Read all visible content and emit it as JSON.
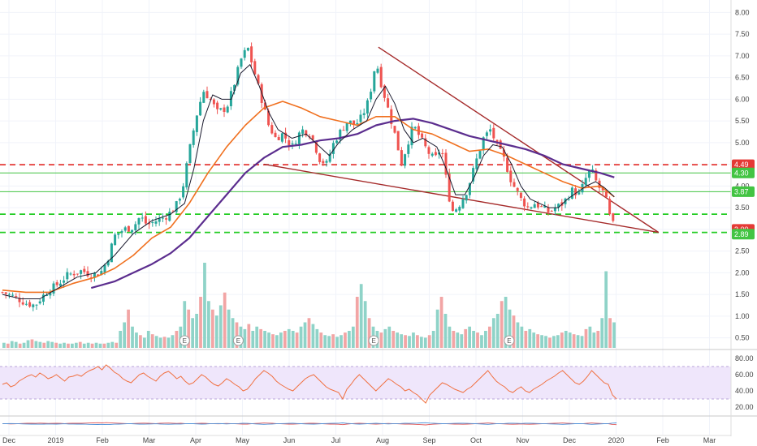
{
  "chart_data": {
    "type": "candlestick",
    "price_axis": {
      "ticks": [
        "8.00",
        "7.50",
        "7.00",
        "6.50",
        "6.00",
        "5.50",
        "5.00",
        "4.50",
        "4.00",
        "3.50",
        "3.00",
        "2.50",
        "2.00",
        "1.50",
        "1.00",
        "0.50"
      ],
      "range": [
        0.25,
        8.1
      ]
    },
    "rsi_axis": {
      "ticks": [
        "80.00",
        "60.00",
        "40.00",
        "20.00"
      ],
      "range": [
        10,
        90
      ],
      "band": [
        30,
        70
      ]
    },
    "x_axis": {
      "ticks": [
        "Dec",
        "2019",
        "Feb",
        "Mar",
        "Apr",
        "May",
        "Jun",
        "Jul",
        "Aug",
        "Sep",
        "Oct",
        "Nov",
        "Dec",
        "2020",
        "Feb",
        "Mar"
      ]
    },
    "price_tags": [
      {
        "label": "4.49",
        "value": 4.49,
        "color": "#e53935"
      },
      {
        "label": "4.30",
        "value": 4.3,
        "color": "#43c443"
      },
      {
        "label": "3.87",
        "value": 3.87,
        "color": "#43c443"
      },
      {
        "label": "3.00",
        "value": 3.0,
        "color": "#e53935"
      },
      {
        "label": "2.89",
        "value": 2.89,
        "color": "#43c443"
      }
    ],
    "horizontal_levels": [
      {
        "value": 4.49,
        "color": "#e53935",
        "style": "dashed"
      },
      {
        "value": 4.3,
        "color": "#43c443",
        "style": "solid"
      },
      {
        "value": 3.87,
        "color": "#43c443",
        "style": "solid"
      },
      {
        "value": 3.35,
        "color": "#22cc22",
        "style": "dashed"
      },
      {
        "value": 2.93,
        "color": "#22cc22",
        "style": "dashed"
      }
    ],
    "trend_lines": [
      {
        "from": [
          8.05,
          7.2
        ],
        "to": [
          14.05,
          2.93
        ],
        "color": "#a52a2a"
      },
      {
        "from": [
          5.6,
          4.5
        ],
        "to": [
          14.05,
          2.93
        ],
        "color": "#a52a2a"
      }
    ],
    "earnings_markers": [
      3.9,
      5.05,
      7.95,
      10.85
    ],
    "price_series": [
      [
        0.0,
        1.55
      ],
      [
        0.25,
        1.45
      ],
      [
        0.5,
        1.3
      ],
      [
        0.7,
        1.25
      ],
      [
        0.85,
        1.45
      ],
      [
        1.0,
        1.6
      ],
      [
        1.2,
        1.75
      ],
      [
        1.4,
        1.95
      ],
      [
        1.7,
        2.05
      ],
      [
        1.9,
        1.95
      ],
      [
        2.1,
        2.0
      ],
      [
        2.25,
        2.3
      ],
      [
        2.4,
        2.85
      ],
      [
        2.6,
        3.0
      ],
      [
        2.8,
        3.05
      ],
      [
        2.95,
        3.3
      ],
      [
        3.1,
        3.1
      ],
      [
        3.3,
        3.2
      ],
      [
        3.5,
        3.3
      ],
      [
        3.7,
        3.5
      ],
      [
        3.85,
        3.9
      ],
      [
        4.0,
        4.8
      ],
      [
        4.15,
        5.6
      ],
      [
        4.3,
        6.2
      ],
      [
        4.45,
        6.0
      ],
      [
        4.6,
        5.7
      ],
      [
        4.8,
        5.8
      ],
      [
        4.95,
        6.3
      ],
      [
        5.1,
        6.9
      ],
      [
        5.25,
        7.2
      ],
      [
        5.4,
        6.6
      ],
      [
        5.55,
        6.0
      ],
      [
        5.7,
        5.4
      ],
      [
        5.85,
        5.1
      ],
      [
        6.0,
        5.2
      ],
      [
        6.2,
        4.9
      ],
      [
        6.4,
        5.3
      ],
      [
        6.6,
        5.2
      ],
      [
        6.8,
        4.6
      ],
      [
        6.95,
        4.5
      ],
      [
        7.05,
        4.9
      ],
      [
        7.2,
        5.2
      ],
      [
        7.4,
        5.5
      ],
      [
        7.55,
        5.4
      ],
      [
        7.7,
        5.6
      ],
      [
        7.85,
        6.0
      ],
      [
        8.0,
        6.9
      ],
      [
        8.1,
        6.4
      ],
      [
        8.25,
        5.8
      ],
      [
        8.4,
        5.2
      ],
      [
        8.55,
        4.5
      ],
      [
        8.65,
        4.9
      ],
      [
        8.8,
        5.4
      ],
      [
        8.95,
        5.1
      ],
      [
        9.1,
        4.8
      ],
      [
        9.25,
        4.6
      ],
      [
        9.4,
        4.9
      ],
      [
        9.55,
        3.8
      ],
      [
        9.65,
        3.4
      ],
      [
        9.8,
        3.6
      ],
      [
        9.95,
        3.9
      ],
      [
        10.15,
        4.6
      ],
      [
        10.3,
        5.1
      ],
      [
        10.45,
        5.3
      ],
      [
        10.6,
        4.9
      ],
      [
        10.75,
        4.6
      ],
      [
        10.9,
        4.1
      ],
      [
        11.1,
        3.7
      ],
      [
        11.25,
        3.5
      ],
      [
        11.4,
        3.6
      ],
      [
        11.55,
        3.5
      ],
      [
        11.7,
        3.4
      ],
      [
        11.85,
        3.5
      ],
      [
        12.0,
        3.6
      ],
      [
        12.2,
        3.9
      ],
      [
        12.35,
        3.8
      ],
      [
        12.5,
        4.2
      ],
      [
        12.6,
        4.4
      ],
      [
        12.75,
        4.0
      ],
      [
        12.9,
        3.8
      ],
      [
        13.0,
        3.3
      ],
      [
        13.1,
        3.05
      ]
    ],
    "ma_short": [
      [
        0.0,
        1.5
      ],
      [
        0.4,
        1.4
      ],
      [
        0.8,
        1.4
      ],
      [
        1.2,
        1.65
      ],
      [
        1.6,
        1.9
      ],
      [
        2.0,
        2.0
      ],
      [
        2.4,
        2.4
      ],
      [
        2.8,
        2.9
      ],
      [
        3.2,
        3.2
      ],
      [
        3.6,
        3.35
      ],
      [
        3.9,
        3.6
      ],
      [
        4.1,
        4.4
      ],
      [
        4.3,
        5.5
      ],
      [
        4.5,
        6.1
      ],
      [
        4.7,
        6.0
      ],
      [
        4.9,
        6.0
      ],
      [
        5.1,
        6.6
      ],
      [
        5.3,
        6.8
      ],
      [
        5.5,
        6.3
      ],
      [
        5.7,
        5.7
      ],
      [
        5.9,
        5.3
      ],
      [
        6.2,
        5.1
      ],
      [
        6.5,
        5.2
      ],
      [
        6.8,
        4.9
      ],
      [
        7.0,
        4.7
      ],
      [
        7.2,
        5.0
      ],
      [
        7.5,
        5.3
      ],
      [
        7.8,
        5.5
      ],
      [
        8.0,
        6.0
      ],
      [
        8.2,
        6.3
      ],
      [
        8.4,
        5.9
      ],
      [
        8.6,
        5.3
      ],
      [
        8.8,
        5.0
      ],
      [
        9.0,
        5.1
      ],
      [
        9.3,
        4.9
      ],
      [
        9.5,
        4.4
      ],
      [
        9.7,
        3.8
      ],
      [
        9.9,
        3.8
      ],
      [
        10.1,
        4.2
      ],
      [
        10.3,
        4.7
      ],
      [
        10.5,
        4.95
      ],
      [
        10.7,
        4.9
      ],
      [
        10.9,
        4.5
      ],
      [
        11.1,
        4.0
      ],
      [
        11.3,
        3.7
      ],
      [
        11.5,
        3.6
      ],
      [
        11.7,
        3.5
      ],
      [
        11.9,
        3.5
      ],
      [
        12.1,
        3.7
      ],
      [
        12.3,
        3.85
      ],
      [
        12.5,
        4.0
      ],
      [
        12.7,
        4.1
      ],
      [
        12.9,
        3.95
      ],
      [
        13.1,
        3.75
      ]
    ],
    "ma_mid": [
      [
        0.0,
        1.6
      ],
      [
        0.5,
        1.55
      ],
      [
        1.0,
        1.55
      ],
      [
        1.5,
        1.75
      ],
      [
        2.0,
        1.9
      ],
      [
        2.4,
        2.1
      ],
      [
        2.8,
        2.4
      ],
      [
        3.2,
        2.8
      ],
      [
        3.6,
        3.05
      ],
      [
        4.0,
        3.6
      ],
      [
        4.4,
        4.3
      ],
      [
        4.8,
        4.9
      ],
      [
        5.2,
        5.4
      ],
      [
        5.6,
        5.8
      ],
      [
        6.0,
        5.95
      ],
      [
        6.4,
        5.8
      ],
      [
        6.8,
        5.6
      ],
      [
        7.2,
        5.5
      ],
      [
        7.6,
        5.4
      ],
      [
        8.0,
        5.6
      ],
      [
        8.4,
        5.6
      ],
      [
        8.8,
        5.3
      ],
      [
        9.2,
        5.2
      ],
      [
        9.6,
        5.0
      ],
      [
        10.0,
        4.8
      ],
      [
        10.4,
        4.85
      ],
      [
        10.8,
        4.7
      ],
      [
        11.2,
        4.5
      ],
      [
        11.6,
        4.3
      ],
      [
        12.0,
        4.1
      ],
      [
        12.4,
        3.95
      ],
      [
        12.8,
        4.0
      ],
      [
        13.1,
        3.75
      ]
    ],
    "ma_long": [
      [
        1.9,
        1.65
      ],
      [
        2.4,
        1.8
      ],
      [
        2.8,
        2.0
      ],
      [
        3.2,
        2.2
      ],
      [
        3.6,
        2.45
      ],
      [
        4.0,
        2.8
      ],
      [
        4.4,
        3.3
      ],
      [
        4.8,
        3.8
      ],
      [
        5.2,
        4.3
      ],
      [
        5.6,
        4.65
      ],
      [
        6.0,
        4.9
      ],
      [
        6.4,
        4.95
      ],
      [
        6.8,
        5.05
      ],
      [
        7.2,
        5.1
      ],
      [
        7.6,
        5.2
      ],
      [
        8.0,
        5.4
      ],
      [
        8.4,
        5.5
      ],
      [
        8.8,
        5.55
      ],
      [
        9.2,
        5.45
      ],
      [
        9.6,
        5.3
      ],
      [
        10.0,
        5.15
      ],
      [
        10.4,
        5.05
      ],
      [
        10.8,
        4.95
      ],
      [
        11.2,
        4.85
      ],
      [
        11.6,
        4.7
      ],
      [
        12.0,
        4.5
      ],
      [
        12.4,
        4.4
      ],
      [
        12.8,
        4.3
      ],
      [
        13.1,
        4.2
      ]
    ],
    "volume_series": [
      0.06,
      0.05,
      0.08,
      0.07,
      0.05,
      0.06,
      0.09,
      0.1,
      0.08,
      0.07,
      0.06,
      0.08,
      0.07,
      0.06,
      0.05,
      0.06,
      0.05,
      0.05,
      0.06,
      0.07,
      0.05,
      0.06,
      0.05,
      0.06,
      0.05,
      0.05,
      0.06,
      0.07,
      0.06,
      0.2,
      0.3,
      0.45,
      0.25,
      0.18,
      0.15,
      0.12,
      0.2,
      0.16,
      0.14,
      0.12,
      0.13,
      0.12,
      0.15,
      0.2,
      0.25,
      0.55,
      0.45,
      0.35,
      0.4,
      0.6,
      1.0,
      0.55,
      0.45,
      0.38,
      0.5,
      0.65,
      0.45,
      0.35,
      0.3,
      0.25,
      0.22,
      0.28,
      0.2,
      0.25,
      0.22,
      0.2,
      0.18,
      0.16,
      0.15,
      0.18,
      0.2,
      0.22,
      0.2,
      0.18,
      0.25,
      0.3,
      0.35,
      0.28,
      0.22,
      0.18,
      0.15,
      0.14,
      0.16,
      0.13,
      0.15,
      0.18,
      0.2,
      0.25,
      0.6,
      0.75,
      0.55,
      0.35,
      0.25,
      0.2,
      0.18,
      0.22,
      0.25,
      0.2,
      0.18,
      0.16,
      0.15,
      0.14,
      0.18,
      0.15,
      0.13,
      0.12,
      0.15,
      0.2,
      0.45,
      0.6,
      0.4,
      0.25,
      0.2,
      0.18,
      0.16,
      0.22,
      0.25,
      0.2,
      0.18,
      0.15,
      0.2,
      0.25,
      0.35,
      0.4,
      0.55,
      0.6,
      0.45,
      0.38,
      0.3,
      0.25,
      0.2,
      0.22,
      0.18,
      0.16,
      0.15,
      0.14,
      0.12,
      0.14,
      0.15,
      0.18,
      0.2,
      0.18,
      0.16,
      0.15,
      0.14,
      0.22,
      0.25,
      0.18,
      0.2,
      0.35,
      0.9,
      0.35,
      0.3
    ],
    "rsi_series": [
      48,
      50,
      45,
      47,
      52,
      55,
      58,
      60,
      57,
      62,
      59,
      55,
      57,
      60,
      56,
      52,
      57,
      58,
      60,
      58,
      62,
      65,
      67,
      70,
      66,
      72,
      68,
      63,
      60,
      55,
      52,
      50,
      55,
      60,
      62,
      58,
      55,
      52,
      58,
      62,
      64,
      60,
      55,
      58,
      52,
      48,
      50,
      55,
      60,
      57,
      52,
      48,
      46,
      50,
      55,
      52,
      48,
      45,
      40,
      42,
      48,
      55,
      60,
      65,
      62,
      58,
      52,
      48,
      45,
      42,
      40,
      45,
      50,
      55,
      58,
      60,
      55,
      50,
      45,
      42,
      40,
      38,
      30,
      42,
      48,
      55,
      60,
      55,
      50,
      45,
      40,
      45,
      50,
      55,
      52,
      48,
      45,
      40,
      42,
      38,
      35,
      30,
      25,
      35,
      40,
      45,
      50,
      48,
      45,
      42,
      40,
      38,
      42,
      45,
      50,
      55,
      60,
      65,
      58,
      52,
      48,
      45,
      40,
      38,
      42,
      45,
      40,
      38,
      42,
      45,
      48,
      52,
      55,
      58,
      62,
      65,
      60,
      55,
      50,
      48,
      52,
      58,
      65,
      60,
      55,
      50,
      48,
      35,
      30
    ]
  }
}
